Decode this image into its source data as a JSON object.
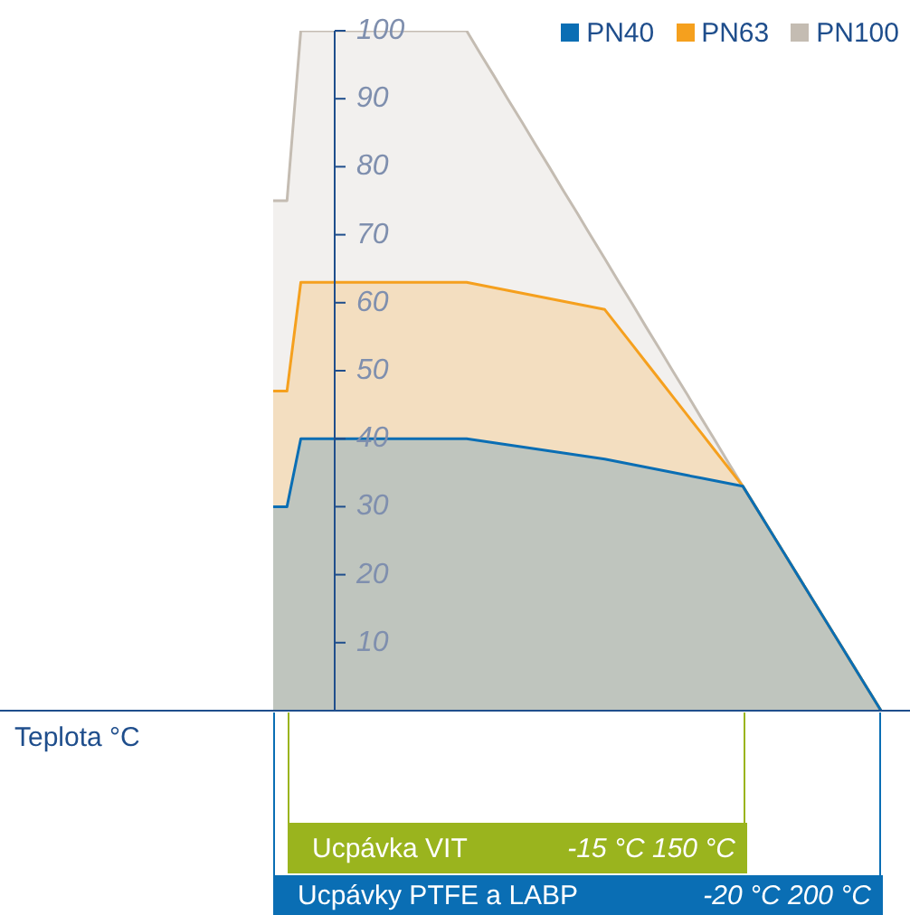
{
  "chart_data": {
    "type": "area",
    "categories": [
      null,
      null,
      null,
      null,
      null,
      null,
      null,
      null,
      null,
      null,
      null,
      null,
      null,
      null,
      null,
      null,
      null,
      null,
      null,
      null,
      null,
      null,
      null,
      null,
      null,
      null,
      null,
      null,
      null,
      null,
      null,
      null,
      null,
      null,
      null,
      null,
      null,
      null,
      null,
      null,
      null,
      null,
      null,
      null,
      null
    ],
    "ylim": [
      0,
      100
    ],
    "yticks": [
      10,
      20,
      30,
      40,
      50,
      60,
      70,
      80,
      90,
      100
    ],
    "tick_labels": "y",
    "legend": "top right",
    "series": [
      {
        "name": "PN40",
        "color": "#0a6eb4",
        "values": [
          30,
          30,
          40,
          40,
          40,
          40,
          40,
          40,
          40,
          40,
          40,
          40,
          40,
          40,
          40,
          39.7,
          39.4,
          39.1,
          38.8,
          38.5,
          38.2,
          37.9,
          37.6,
          37.3,
          37,
          36.6,
          36.2,
          35.8,
          35.4,
          35,
          34.6,
          34.2,
          33.8,
          33.4,
          33,
          29.7,
          26.4,
          23.1,
          19.8,
          16.5,
          13.2,
          9.9,
          6.6,
          3.3,
          0
        ]
      },
      {
        "name": "PN63",
        "color": "#f5a01e",
        "values": [
          47,
          47,
          63,
          63,
          63,
          63,
          63,
          63,
          63,
          63,
          63,
          63,
          63,
          63,
          63,
          62.6,
          62.2,
          61.8,
          61.4,
          61,
          60.6,
          60.2,
          59.8,
          59.4,
          59,
          56.4,
          53.8,
          51.2,
          48.6,
          46,
          43.4,
          40.8,
          38.2,
          35.6,
          33,
          29.7,
          26.4,
          23.1,
          19.8,
          16.5,
          13.2,
          9.9,
          6.6,
          3.3,
          0
        ]
      },
      {
        "name": "PN100",
        "color": "#c4bcb2",
        "values": [
          75,
          75,
          100,
          100,
          100,
          100,
          100,
          100,
          100,
          100,
          100,
          100,
          100,
          100,
          100,
          96.6,
          93.3,
          89.9,
          86.6,
          83.2,
          79.9,
          76.5,
          73.2,
          69.8,
          66.5,
          63.1,
          59.8,
          56.4,
          53.1,
          49.7,
          46.4,
          43,
          39.7,
          36.3,
          33,
          29.7,
          26.4,
          23.1,
          19.8,
          16.5,
          13.2,
          9.9,
          6.6,
          3.3,
          0
        ]
      }
    ],
    "annotations": [
      "Teplota °C",
      "Ucpávka VIT",
      "-15 °C 150 °C",
      "Ucpávky PTFE a LABP",
      "-20 °C 200 °C"
    ]
  }
}
